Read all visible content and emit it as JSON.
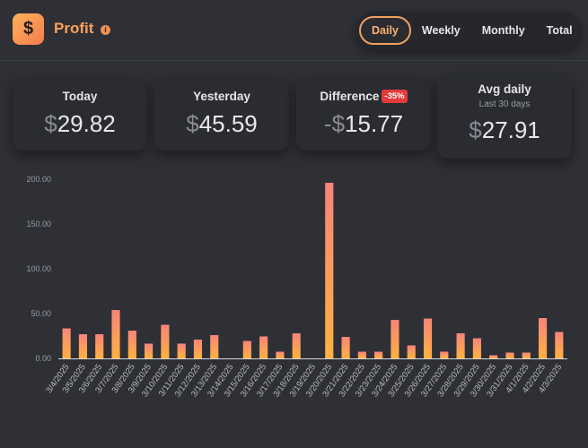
{
  "header": {
    "logo_symbol": "$",
    "title": "Profit",
    "info_icon": "info-icon"
  },
  "tabs": [
    {
      "label": "Daily",
      "active": true
    },
    {
      "label": "Weekly",
      "active": false
    },
    {
      "label": "Monthly",
      "active": false
    },
    {
      "label": "Total",
      "active": false
    }
  ],
  "stats": {
    "today": {
      "label": "Today",
      "currency": "$",
      "value": "29.82"
    },
    "yesterday": {
      "label": "Yesterday",
      "currency": "$",
      "value": "45.59"
    },
    "difference": {
      "label": "Difference",
      "badge": "-35%",
      "sign": "-",
      "currency": "$",
      "value": "15.77"
    },
    "avg": {
      "label": "Avg daily",
      "sublabel": "Last 30 days",
      "currency": "$",
      "value": "27.91"
    }
  },
  "colors": {
    "accent": "#ff9f5a",
    "bar_top": "#f8847a",
    "bar_bottom": "#ffb240",
    "badge": "#e23b3b"
  },
  "chart_data": {
    "type": "bar",
    "categories": [
      "3/4/2025",
      "3/5/2025",
      "3/6/2025",
      "3/7/2025",
      "3/8/2025",
      "3/9/2025",
      "3/10/2025",
      "3/11/2025",
      "3/12/2025",
      "3/13/2025",
      "3/14/2025",
      "3/15/2025",
      "3/16/2025",
      "3/17/2025",
      "3/18/2025",
      "3/19/2025",
      "3/20/2025",
      "3/21/2025",
      "3/22/2025",
      "3/23/2025",
      "3/24/2025",
      "3/25/2025",
      "3/26/2025",
      "3/27/2025",
      "3/28/2025",
      "3/29/2025",
      "3/30/2025",
      "3/31/2025",
      "4/1/2025",
      "4/2/2025",
      "4/3/2025"
    ],
    "values": [
      33.5,
      27,
      27,
      54,
      31,
      16.5,
      37.5,
      16.5,
      21,
      26,
      0,
      19.5,
      24.5,
      7.5,
      28,
      0,
      196,
      24,
      7.5,
      7.5,
      43,
      14.5,
      44.5,
      7.5,
      28,
      22.5,
      3.5,
      6.5,
      6.5,
      45,
      29.5
    ],
    "ylim": [
      0,
      200
    ],
    "yticks": [
      "0.00",
      "50.00",
      "100.00",
      "150.00",
      "200.00"
    ],
    "grid": false
  }
}
